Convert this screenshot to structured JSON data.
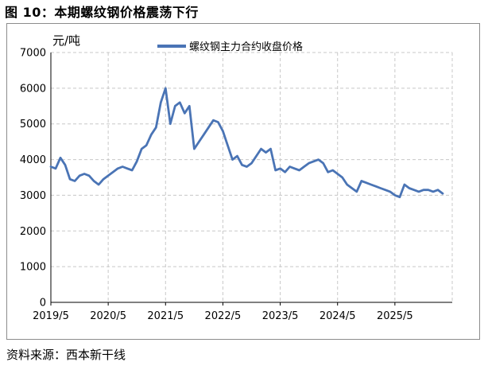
{
  "figure_title": "图 10：本期螺纹钢价格震荡下行",
  "source_note": "资料来源：西本新干线",
  "chart_data": {
    "type": "line",
    "ylabel": "元/吨",
    "ylim": [
      0,
      7000
    ],
    "yticks": [
      0,
      1000,
      2000,
      3000,
      4000,
      5000,
      6000,
      7000
    ],
    "xlim": [
      "2019/5",
      "2026/5"
    ],
    "xticks": [
      "2019/5",
      "2020/5",
      "2021/5",
      "2022/5",
      "2023/5",
      "2024/5",
      "2025/5"
    ],
    "grid": true,
    "legend": "top-center",
    "series": [
      {
        "name": "螺纹钢主力合约收盘价格",
        "color": "#4a74b5",
        "x": [
          "2019/5",
          "2019/6",
          "2019/7",
          "2019/8",
          "2019/9",
          "2019/10",
          "2019/11",
          "2019/12",
          "2020/1",
          "2020/2",
          "2020/3",
          "2020/4",
          "2020/5",
          "2020/6",
          "2020/7",
          "2020/8",
          "2020/9",
          "2020/10",
          "2020/11",
          "2020/12",
          "2021/1",
          "2021/2",
          "2021/3",
          "2021/4",
          "2021/5",
          "2021/6",
          "2021/7",
          "2021/8",
          "2021/9",
          "2021/10",
          "2021/11",
          "2021/12",
          "2022/1",
          "2022/2",
          "2022/3",
          "2022/4",
          "2022/5",
          "2022/6",
          "2022/7",
          "2022/8",
          "2022/9",
          "2022/10",
          "2022/11",
          "2022/12",
          "2023/1",
          "2023/2",
          "2023/3",
          "2023/4",
          "2023/5",
          "2023/6",
          "2023/7",
          "2023/8",
          "2023/9",
          "2023/10",
          "2023/11",
          "2023/12",
          "2024/1",
          "2024/2",
          "2024/3",
          "2024/4",
          "2024/5",
          "2024/6",
          "2024/7",
          "2024/8",
          "2024/9",
          "2024/10",
          "2024/11",
          "2024/12",
          "2025/1",
          "2025/2",
          "2025/3",
          "2025/4",
          "2025/5",
          "2025/6",
          "2025/7",
          "2025/8",
          "2025/9",
          "2025/10",
          "2025/11",
          "2025/12",
          "2026/1",
          "2026/2",
          "2026/3"
        ],
        "values": [
          3800,
          3750,
          4050,
          3850,
          3450,
          3400,
          3550,
          3600,
          3550,
          3400,
          3300,
          3450,
          3550,
          3650,
          3750,
          3800,
          3750,
          3700,
          3950,
          4300,
          4400,
          4700,
          4900,
          5600,
          6000,
          5000,
          5500,
          5600,
          5300,
          5500,
          4300,
          4500,
          4700,
          4900,
          5100,
          5050,
          4800,
          4400,
          4000,
          4100,
          3850,
          3800,
          3900,
          4100,
          4300,
          4200,
          4300,
          3700,
          3750,
          3650,
          3800,
          3750,
          3700,
          3800,
          3900,
          3950,
          4000,
          3900,
          3650,
          3700,
          3600,
          3500,
          3300,
          3200,
          3100,
          3400,
          3350,
          3300,
          3250,
          3200,
          3150,
          3100,
          3000,
          2950,
          3300,
          3200,
          3150,
          3100,
          3150,
          3150,
          3100,
          3150,
          3050
        ]
      }
    ]
  }
}
